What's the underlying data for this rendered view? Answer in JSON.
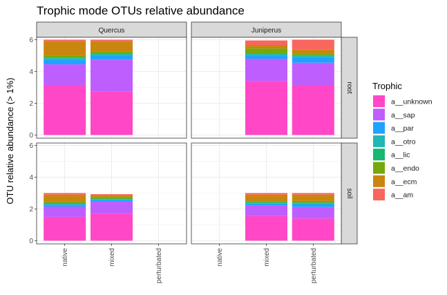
{
  "chart_data": {
    "type": "bar",
    "stacked": true,
    "title": "Trophic mode OTUs relative abundance",
    "xlabel": "",
    "ylabel": "OTU relative abundance (> 1%)",
    "ylim": [
      0,
      6.15
    ],
    "yticks": [
      0,
      2,
      4,
      6
    ],
    "categories": [
      "native",
      "mixed",
      "perturbated"
    ],
    "columns": [
      "Quercus",
      "Juniperus"
    ],
    "rows": [
      "root",
      "soil"
    ],
    "legend": {
      "title": "Trophic",
      "position": "right",
      "entries": [
        {
          "name": "a__unknown",
          "color": "#FF47C7"
        },
        {
          "name": "a__sap",
          "color": "#BF5EFF"
        },
        {
          "name": "a__par",
          "color": "#1FA3FF"
        },
        {
          "name": "a__otro",
          "color": "#20B7B5"
        },
        {
          "name": "a__lic",
          "color": "#18B86E"
        },
        {
          "name": "a__endo",
          "color": "#75A80D"
        },
        {
          "name": "a__ecm",
          "color": "#C9860F"
        },
        {
          "name": "a__am",
          "color": "#F8665E"
        }
      ]
    },
    "series_order": [
      "a__unknown",
      "a__sap",
      "a__par",
      "a__otro",
      "a__lic",
      "a__endo",
      "a__ecm",
      "a__am"
    ],
    "panels": [
      {
        "column": "Quercus",
        "row": "root",
        "bars": [
          {
            "category": "native",
            "values": [
              3.15,
              1.3,
              0.3,
              0.08,
              0.05,
              0.1,
              0.92,
              0.1
            ]
          },
          {
            "category": "mixed",
            "values": [
              2.75,
              2.0,
              0.25,
              0.08,
              0.05,
              0.12,
              0.65,
              0.1
            ]
          }
        ]
      },
      {
        "column": "Juniperus",
        "row": "root",
        "bars": [
          {
            "category": "mixed",
            "values": [
              3.4,
              1.4,
              0.2,
              0.08,
              0.05,
              0.32,
              0.2,
              0.3
            ]
          },
          {
            "category": "perturbated",
            "values": [
              3.15,
              1.4,
              0.35,
              0.08,
              0.05,
              0.1,
              0.25,
              0.62
            ]
          }
        ]
      },
      {
        "column": "Quercus",
        "row": "soil",
        "bars": [
          {
            "category": "native",
            "values": [
              1.5,
              0.65,
              0.12,
              0.05,
              0.05,
              0.1,
              0.43,
              0.1
            ]
          },
          {
            "category": "mixed",
            "values": [
              1.7,
              0.75,
              0.12,
              0.05,
              0.03,
              0.1,
              0.12,
              0.06
            ]
          }
        ]
      },
      {
        "column": "Juniperus",
        "row": "soil",
        "bars": [
          {
            "category": "mixed",
            "values": [
              1.55,
              0.68,
              0.1,
              0.05,
              0.05,
              0.05,
              0.42,
              0.1
            ]
          },
          {
            "category": "perturbated",
            "values": [
              1.4,
              0.72,
              0.18,
              0.05,
              0.05,
              0.1,
              0.4,
              0.1
            ]
          }
        ]
      }
    ]
  }
}
